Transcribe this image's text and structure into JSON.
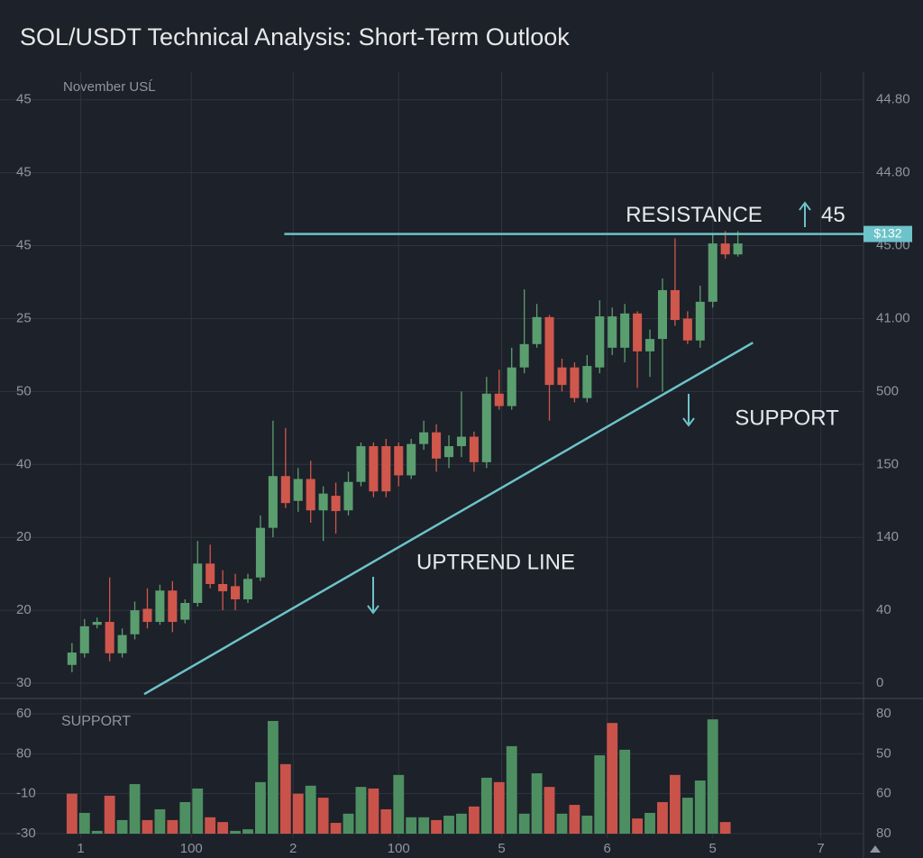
{
  "chart_data": [
    {
      "type": "candlestick",
      "title": "SOL/USDT Technical Analysis: Short-Term Outlook",
      "subtitle": "November USĹ",
      "up_color": "#5a9e6f",
      "down_color": "#d0574c",
      "xlim": [
        -2.5,
        63
      ],
      "xticks": [
        {
          "value": 0.7,
          "label": "1"
        },
        {
          "value": 9.5,
          "label": "100"
        },
        {
          "value": 17.6,
          "label": "2"
        },
        {
          "value": 26.0,
          "label": "100"
        },
        {
          "value": 34.2,
          "label": "5"
        },
        {
          "value": 42.6,
          "label": "6"
        },
        {
          "value": 51.0,
          "label": "5"
        },
        {
          "value": 59.6,
          "label": "7"
        }
      ],
      "ylim": [
        -0.21,
        8.38
      ],
      "yticks": [
        {
          "value": 0,
          "label": "30"
        },
        {
          "value": 1,
          "label": "20"
        },
        {
          "value": 2,
          "label": "20"
        },
        {
          "value": 3,
          "label": "40"
        },
        {
          "value": 4,
          "label": "50"
        },
        {
          "value": 5,
          "label": "25"
        },
        {
          "value": 6,
          "label": "45"
        },
        {
          "value": 7,
          "label": "45"
        },
        {
          "value": 8,
          "label": "45"
        }
      ],
      "y2ticks": [
        {
          "value": 0,
          "label": "0"
        },
        {
          "value": 1,
          "label": "40"
        },
        {
          "value": 2,
          "label": "140"
        },
        {
          "value": 3,
          "label": "150"
        },
        {
          "value": 4,
          "label": "500"
        },
        {
          "value": 5,
          "label": "41.00"
        },
        {
          "value": 6,
          "label": "45.00"
        },
        {
          "value": 7,
          "label": "44.80"
        },
        {
          "value": 8,
          "label": "44.80"
        }
      ],
      "x": [
        0,
        1,
        2,
        3,
        4,
        5,
        6,
        7,
        8,
        9,
        10,
        11,
        12,
        13,
        14,
        15,
        16,
        17,
        18,
        19,
        20,
        21,
        22,
        23,
        24,
        25,
        26,
        27,
        28,
        29,
        30,
        31,
        32,
        33,
        34,
        35,
        36,
        37,
        38,
        39,
        40,
        41,
        42,
        43,
        44,
        45,
        46,
        47,
        48,
        49,
        50,
        51,
        52,
        53
      ],
      "open": [
        0.25,
        0.41,
        0.8,
        0.84,
        0.41,
        0.67,
        1.02,
        0.84,
        1.27,
        0.87,
        1.1,
        1.64,
        1.36,
        1.33,
        1.15,
        1.45,
        2.13,
        2.84,
        2.5,
        2.8,
        2.37,
        2.57,
        2.37,
        2.76,
        3.25,
        3.25,
        3.25,
        2.85,
        3.28,
        3.44,
        3.1,
        3.25,
        3.38,
        3.03,
        3.97,
        3.8,
        4.33,
        4.65,
        5.02,
        4.33,
        4.33,
        3.91,
        4.33,
        4.6,
        4.6,
        5.07,
        4.55,
        4.72,
        5.39,
        5.0,
        4.7,
        5.23,
        6.03,
        5.88
      ],
      "high": [
        0.55,
        0.88,
        0.9,
        1.45,
        0.75,
        1.12,
        1.3,
        1.35,
        1.4,
        1.15,
        1.95,
        1.9,
        1.55,
        1.5,
        1.5,
        2.3,
        3.6,
        3.5,
        2.95,
        3.05,
        2.7,
        2.75,
        2.9,
        3.3,
        3.3,
        3.35,
        3.3,
        3.35,
        3.6,
        3.55,
        3.4,
        4.0,
        3.45,
        4.2,
        4.3,
        4.6,
        5.4,
        5.2,
        5.05,
        4.45,
        4.4,
        4.5,
        5.25,
        5.15,
        5.2,
        5.1,
        4.85,
        5.55,
        6.1,
        5.1,
        5.45,
        6.15,
        6.2,
        6.2
      ],
      "low": [
        0.15,
        0.35,
        0.75,
        0.3,
        0.35,
        0.6,
        0.75,
        0.8,
        0.7,
        0.82,
        1.05,
        1.3,
        1.0,
        1.0,
        1.1,
        1.4,
        2.0,
        2.4,
        2.35,
        2.2,
        1.95,
        2.05,
        2.3,
        2.7,
        2.55,
        2.55,
        2.7,
        2.8,
        3.2,
        2.9,
        2.95,
        3.1,
        2.9,
        2.95,
        3.75,
        3.75,
        4.25,
        4.6,
        3.6,
        4.0,
        3.85,
        3.85,
        4.25,
        4.5,
        4.4,
        4.05,
        4.2,
        4.0,
        4.9,
        4.65,
        4.6,
        5.15,
        5.82,
        5.85
      ],
      "close": [
        0.42,
        0.78,
        0.84,
        0.41,
        0.66,
        1.0,
        0.84,
        1.27,
        0.84,
        1.1,
        1.64,
        1.36,
        1.26,
        1.15,
        1.43,
        2.13,
        2.84,
        2.47,
        2.8,
        2.37,
        2.6,
        2.36,
        2.76,
        3.25,
        2.63,
        2.63,
        2.85,
        3.28,
        3.44,
        3.08,
        3.25,
        3.38,
        3.03,
        3.97,
        3.8,
        4.33,
        4.65,
        5.02,
        4.09,
        4.09,
        3.91,
        4.35,
        5.03,
        5.03,
        5.07,
        4.55,
        4.72,
        5.39,
        4.98,
        4.7,
        5.23,
        6.03,
        5.88,
        6.03
      ],
      "line_color": "#6cc3c9",
      "resistance": {
        "text": "RESISTANCE",
        "level": 6.16,
        "x_start": 16.9,
        "level_label": "45",
        "badge": "$132"
      },
      "uptrend": {
        "text": "UPTREND LINE",
        "x": [
          5.75,
          54.2
        ],
        "y": [
          -0.15,
          4.67
        ]
      },
      "support": {
        "text": "SUPPORT"
      }
    },
    {
      "type": "bar",
      "subtitle": "SUPPORT",
      "ylim": [
        0,
        3.27
      ],
      "yticks": [
        {
          "value": 0,
          "label": "-30"
        },
        {
          "value": 1,
          "label": "-10"
        },
        {
          "value": 2,
          "label": "80"
        },
        {
          "value": 3,
          "label": "60"
        }
      ],
      "y2ticks": [
        {
          "value": 0,
          "label": "80"
        },
        {
          "value": 1,
          "label": "60"
        },
        {
          "value": 2,
          "label": "50"
        },
        {
          "value": 3,
          "label": "80"
        }
      ],
      "x": [
        0,
        1,
        2,
        3,
        4,
        5,
        6,
        7,
        8,
        9,
        10,
        11,
        12,
        13,
        14,
        15,
        16,
        17,
        18,
        19,
        20,
        21,
        22,
        23,
        24,
        25,
        26,
        27,
        28,
        29,
        30,
        31,
        32,
        33,
        34,
        35,
        36,
        37,
        38,
        39,
        40,
        41,
        42,
        43,
        44,
        45,
        46,
        47,
        48,
        49,
        50,
        51,
        52
      ],
      "values": [
        1.0,
        0.52,
        0.07,
        0.95,
        0.34,
        1.24,
        0.34,
        0.61,
        0.34,
        0.79,
        1.13,
        0.41,
        0.29,
        0.07,
        0.11,
        1.29,
        2.82,
        1.74,
        1.0,
        1.2,
        0.9,
        0.27,
        0.5,
        1.17,
        1.13,
        0.61,
        1.47,
        0.41,
        0.41,
        0.34,
        0.45,
        0.5,
        0.68,
        1.4,
        1.29,
        2.19,
        0.5,
        1.51,
        1.17,
        0.5,
        0.72,
        0.45,
        1.96,
        2.77,
        2.1,
        0.38,
        0.52,
        0.79,
        1.47,
        0.9,
        1.33,
        2.86,
        0.29
      ],
      "colors": [
        "#c9534a",
        "#4e8f62",
        "#4e8f62",
        "#c9534a",
        "#4e8f62",
        "#4e8f62",
        "#c9534a",
        "#4e8f62",
        "#c9534a",
        "#4e8f62",
        "#4e8f62",
        "#c9534a",
        "#c9534a",
        "#4e8f62",
        "#4e8f62",
        "#4e8f62",
        "#4e8f62",
        "#c9534a",
        "#c9534a",
        "#4e8f62",
        "#c9534a",
        "#c9534a",
        "#4e8f62",
        "#4e8f62",
        "#c9534a",
        "#c9534a",
        "#4e8f62",
        "#4e8f62",
        "#4e8f62",
        "#c9534a",
        "#4e8f62",
        "#4e8f62",
        "#c9534a",
        "#4e8f62",
        "#c9534a",
        "#4e8f62",
        "#4e8f62",
        "#4e8f62",
        "#c9534a",
        "#4e8f62",
        "#c9534a",
        "#4e8f62",
        "#4e8f62",
        "#c9534a",
        "#4e8f62",
        "#c9534a",
        "#4e8f62",
        "#c9534a",
        "#c9534a",
        "#4e8f62",
        "#4e8f62",
        "#4e8f62",
        "#c9534a"
      ]
    }
  ]
}
